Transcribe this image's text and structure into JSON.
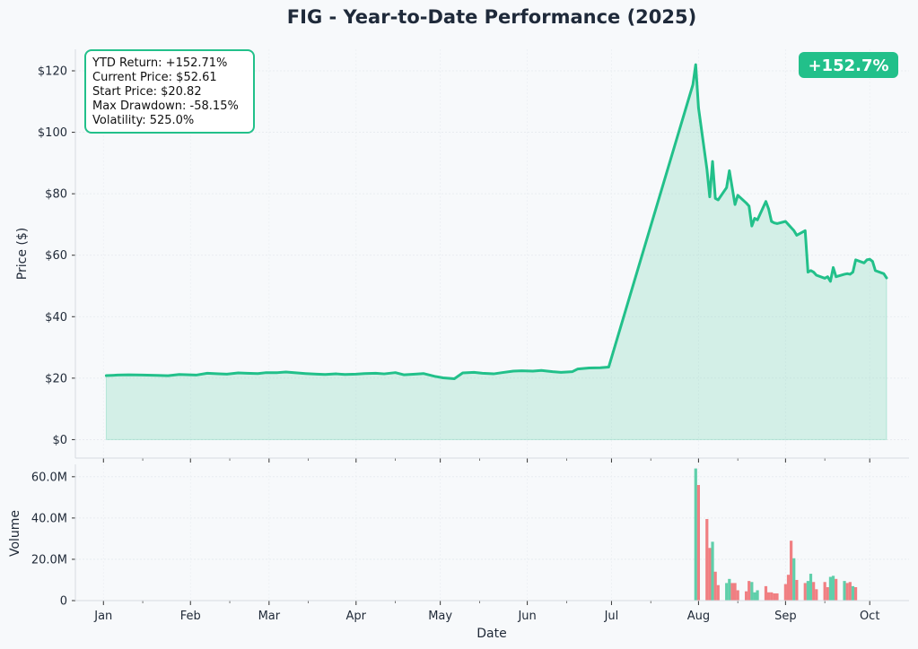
{
  "chart_data": [
    {
      "type": "area",
      "title": "FIG - Year-to-Date Performance (2025)",
      "ylabel": "Price ($)",
      "ylim": [
        -6,
        127
      ],
      "y_ticks": [
        0,
        20,
        40,
        60,
        80,
        100,
        120
      ],
      "y_tick_labels": [
        "$0",
        "$20",
        "$40",
        "$60",
        "$80",
        "$100",
        "$120"
      ],
      "grid": true,
      "series": [
        {
          "color": "#22c08a",
          "points": [
            [
              "2025-01-02",
              20.82
            ],
            [
              "2025-01-06",
              21.0
            ],
            [
              "2025-01-10",
              21.1
            ],
            [
              "2025-01-15",
              21.0
            ],
            [
              "2025-01-20",
              20.9
            ],
            [
              "2025-01-24",
              20.8
            ],
            [
              "2025-01-28",
              21.2
            ],
            [
              "2025-02-03",
              21.0
            ],
            [
              "2025-02-07",
              21.6
            ],
            [
              "2025-02-11",
              21.4
            ],
            [
              "2025-02-14",
              21.3
            ],
            [
              "2025-02-18",
              21.7
            ],
            [
              "2025-02-21",
              21.6
            ],
            [
              "2025-02-25",
              21.5
            ],
            [
              "2025-02-28",
              21.8
            ],
            [
              "2025-03-04",
              21.8
            ],
            [
              "2025-03-07",
              22.0
            ],
            [
              "2025-03-11",
              21.7
            ],
            [
              "2025-03-14",
              21.5
            ],
            [
              "2025-03-18",
              21.3
            ],
            [
              "2025-03-21",
              21.2
            ],
            [
              "2025-03-25",
              21.4
            ],
            [
              "2025-03-28",
              21.2
            ],
            [
              "2025-04-01",
              21.3
            ],
            [
              "2025-04-04",
              21.5
            ],
            [
              "2025-04-08",
              21.6
            ],
            [
              "2025-04-11",
              21.4
            ],
            [
              "2025-04-15",
              21.8
            ],
            [
              "2025-04-18",
              21.1
            ],
            [
              "2025-04-22",
              21.3
            ],
            [
              "2025-04-25",
              21.5
            ],
            [
              "2025-04-29",
              20.6
            ],
            [
              "2025-05-02",
              20.1
            ],
            [
              "2025-05-06",
              19.8
            ],
            [
              "2025-05-09",
              21.7
            ],
            [
              "2025-05-13",
              21.9
            ],
            [
              "2025-05-16",
              21.6
            ],
            [
              "2025-05-20",
              21.4
            ],
            [
              "2025-05-23",
              21.8
            ],
            [
              "2025-05-27",
              22.3
            ],
            [
              "2025-05-30",
              22.4
            ],
            [
              "2025-06-03",
              22.3
            ],
            [
              "2025-06-06",
              22.5
            ],
            [
              "2025-06-10",
              22.1
            ],
            [
              "2025-06-13",
              21.9
            ],
            [
              "2025-06-17",
              22.1
            ],
            [
              "2025-06-19",
              23.0
            ],
            [
              "2025-06-23",
              23.3
            ],
            [
              "2025-06-27",
              23.4
            ],
            [
              "2025-06-30",
              23.6
            ],
            [
              "2025-07-30",
              115.5
            ],
            [
              "2025-07-31",
              122.0
            ],
            [
              "2025-08-01",
              108.0
            ],
            [
              "2025-08-04",
              88.0
            ],
            [
              "2025-08-05",
              79.0
            ],
            [
              "2025-08-06",
              90.5
            ],
            [
              "2025-08-07",
              78.5
            ],
            [
              "2025-08-08",
              78.0
            ],
            [
              "2025-08-11",
              82.0
            ],
            [
              "2025-08-12",
              87.5
            ],
            [
              "2025-08-13",
              82.0
            ],
            [
              "2025-08-14",
              76.5
            ],
            [
              "2025-08-15",
              79.5
            ],
            [
              "2025-08-18",
              77.0
            ],
            [
              "2025-08-19",
              76.0
            ],
            [
              "2025-08-20",
              69.5
            ],
            [
              "2025-08-21",
              72.0
            ],
            [
              "2025-08-22",
              71.5
            ],
            [
              "2025-08-25",
              77.5
            ],
            [
              "2025-08-26",
              75.0
            ],
            [
              "2025-08-27",
              71.0
            ],
            [
              "2025-08-28",
              70.5
            ],
            [
              "2025-08-29",
              70.3
            ],
            [
              "2025-09-01",
              71.0
            ],
            [
              "2025-09-02",
              70.0
            ],
            [
              "2025-09-03",
              69.0
            ],
            [
              "2025-09-04",
              68.0
            ],
            [
              "2025-09-05",
              66.5
            ],
            [
              "2025-09-08",
              68.0
            ],
            [
              "2025-09-09",
              54.5
            ],
            [
              "2025-09-10",
              55.0
            ],
            [
              "2025-09-11",
              54.5
            ],
            [
              "2025-09-12",
              53.5
            ],
            [
              "2025-09-15",
              52.5
            ],
            [
              "2025-09-16",
              53.0
            ],
            [
              "2025-09-17",
              51.5
            ],
            [
              "2025-09-18",
              56.0
            ],
            [
              "2025-09-19",
              53.0
            ],
            [
              "2025-09-22",
              53.8
            ],
            [
              "2025-09-23",
              54.0
            ],
            [
              "2025-09-24",
              53.8
            ],
            [
              "2025-09-25",
              54.5
            ],
            [
              "2025-09-26",
              58.5
            ],
            [
              "2025-09-29",
              57.5
            ],
            [
              "2025-09-30",
              58.5
            ],
            [
              "2025-10-01",
              58.7
            ],
            [
              "2025-10-02",
              58.0
            ],
            [
              "2025-10-03",
              55.0
            ],
            [
              "2025-10-06",
              54.0
            ],
            [
              "2025-10-07",
              52.61
            ]
          ]
        }
      ],
      "stats_box": [
        "YTD Return: +152.71%",
        "Current Price: $52.61",
        "Start Price: $20.82",
        "Max Drawdown: -58.15%",
        "Volatility: 525.0%"
      ],
      "badge": {
        "text": "+152.7%",
        "color": "#22c08a"
      }
    },
    {
      "type": "bar",
      "xlabel": "Date",
      "ylabel": "Volume",
      "ylim": [
        0,
        66
      ],
      "y_ticks": [
        0,
        20,
        40,
        60
      ],
      "y_tick_labels": [
        "0",
        "20.0M",
        "40.0M",
        "60.0M"
      ],
      "grid": true,
      "up_color": "#5fcfaa",
      "down_color": "#f07f82",
      "bars": [
        [
          "2025-07-31",
          64.0,
          "up"
        ],
        [
          "2025-08-01",
          56.0,
          "down"
        ],
        [
          "2025-08-04",
          39.5,
          "down"
        ],
        [
          "2025-08-05",
          25.5,
          "down"
        ],
        [
          "2025-08-06",
          28.5,
          "up"
        ],
        [
          "2025-08-07",
          14.0,
          "down"
        ],
        [
          "2025-08-08",
          7.5,
          "down"
        ],
        [
          "2025-08-11",
          8.5,
          "up"
        ],
        [
          "2025-08-12",
          10.5,
          "up"
        ],
        [
          "2025-08-13",
          8.5,
          "down"
        ],
        [
          "2025-08-14",
          8.5,
          "down"
        ],
        [
          "2025-08-15",
          5.0,
          "down"
        ],
        [
          "2025-08-18",
          4.5,
          "down"
        ],
        [
          "2025-08-19",
          9.5,
          "down"
        ],
        [
          "2025-08-20",
          9.0,
          "up"
        ],
        [
          "2025-08-21",
          4.0,
          "up"
        ],
        [
          "2025-08-22",
          5.0,
          "up"
        ],
        [
          "2025-08-25",
          7.0,
          "down"
        ],
        [
          "2025-08-26",
          4.0,
          "down"
        ],
        [
          "2025-08-27",
          4.0,
          "down"
        ],
        [
          "2025-08-28",
          3.5,
          "down"
        ],
        [
          "2025-08-29",
          3.5,
          "down"
        ],
        [
          "2025-09-01",
          8.0,
          "down"
        ],
        [
          "2025-09-02",
          12.5,
          "down"
        ],
        [
          "2025-09-03",
          29.0,
          "down"
        ],
        [
          "2025-09-04",
          20.5,
          "up"
        ],
        [
          "2025-09-05",
          10.0,
          "down"
        ],
        [
          "2025-09-08",
          8.5,
          "down"
        ],
        [
          "2025-09-09",
          9.5,
          "up"
        ],
        [
          "2025-09-10",
          13.0,
          "up"
        ],
        [
          "2025-09-11",
          9.0,
          "down"
        ],
        [
          "2025-09-12",
          5.5,
          "down"
        ],
        [
          "2025-09-15",
          9.0,
          "down"
        ],
        [
          "2025-09-16",
          6.5,
          "down"
        ],
        [
          "2025-09-17",
          11.5,
          "up"
        ],
        [
          "2025-09-18",
          12.0,
          "up"
        ],
        [
          "2025-09-19",
          10.5,
          "down"
        ],
        [
          "2025-09-22",
          9.5,
          "up"
        ],
        [
          "2025-09-23",
          8.5,
          "down"
        ],
        [
          "2025-09-24",
          9.0,
          "down"
        ],
        [
          "2025-09-25",
          7.0,
          "up"
        ],
        [
          "2025-09-26",
          6.5,
          "down"
        ]
      ]
    }
  ],
  "x_axis": {
    "start": "2024-12-22",
    "end": "2025-10-15",
    "tick_dates": [
      "2025-01-01",
      "2025-02-01",
      "2025-03-01",
      "2025-04-01",
      "2025-05-01",
      "2025-06-01",
      "2025-07-01",
      "2025-08-01",
      "2025-09-01",
      "2025-10-01"
    ],
    "tick_labels": [
      "Jan",
      "Feb",
      "Mar",
      "Apr",
      "May",
      "Jun",
      "Jul",
      "Aug",
      "Sep",
      "Oct"
    ]
  }
}
